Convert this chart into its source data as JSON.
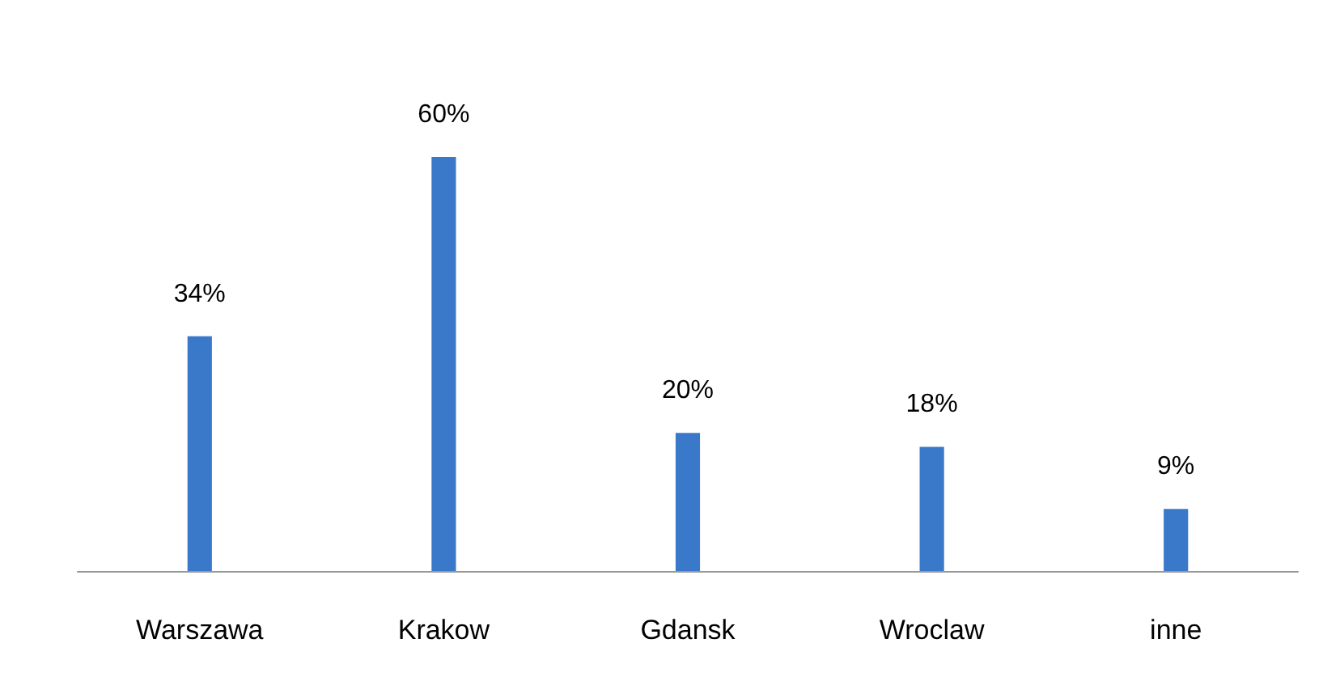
{
  "chart_data": {
    "type": "bar",
    "categories": [
      "Warszawa",
      "Krakow",
      "Gdansk",
      "Wroclaw",
      "inne"
    ],
    "values": [
      34,
      60,
      20,
      18,
      9
    ],
    "value_labels": [
      "34%",
      "60%",
      "20%",
      "18%",
      "9%"
    ],
    "color": "#3a78c9"
  }
}
